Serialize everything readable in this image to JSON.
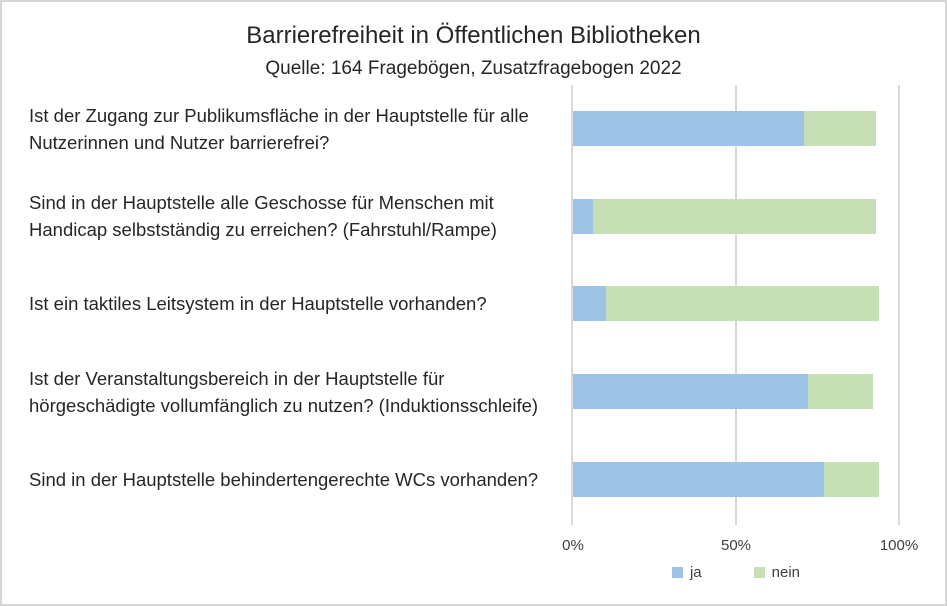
{
  "title": "Barrierefreiheit in Öffentlichen Bibliotheken",
  "subtitle": "Quelle: 164 Fragebögen, Zusatzfragebogen 2022",
  "chart_data": {
    "type": "bar",
    "orientation": "horizontal",
    "stacked": true,
    "title": "Barrierefreiheit in Öffentlichen Bibliotheken",
    "subtitle": "Quelle: 164 Fragebögen, Zusatzfragebogen 2022",
    "categories": [
      "Ist der Zugang zur Publikumsfläche in der Hauptstelle für alle Nutzerinnen und Nutzer barrierefrei?",
      "Sind in der Hauptstelle alle Geschosse für Menschen mit Handicap selbstständig zu erreichen? (Fahrstuhl/Rampe)",
      "Ist ein taktiles Leitsystem in der Hauptstelle vorhanden?",
      "Ist der Veranstaltungsbereich in der Hauptstelle für hörgeschädigte vollumfänglich zu nutzen? (Induktionsschleife)",
      "Sind in der Hauptstelle behindertengerechte WCs vorhanden?"
    ],
    "series": [
      {
        "name": "ja",
        "color": "#9DC3E6",
        "values": [
          71,
          6,
          10,
          72,
          77
        ]
      },
      {
        "name": "nein",
        "color": "#C6DFB4",
        "values": [
          22,
          87,
          84,
          20,
          17
        ]
      }
    ],
    "xlabel": "",
    "ylabel": "",
    "x_ticks": [
      "0%",
      "50%",
      "100%"
    ],
    "xlim": [
      0,
      100
    ],
    "grid": "vertical-gridlines-at-0-50-100",
    "legend_position": "bottom",
    "gridline_color": "#D9D9D9",
    "text_color": "#262626"
  }
}
